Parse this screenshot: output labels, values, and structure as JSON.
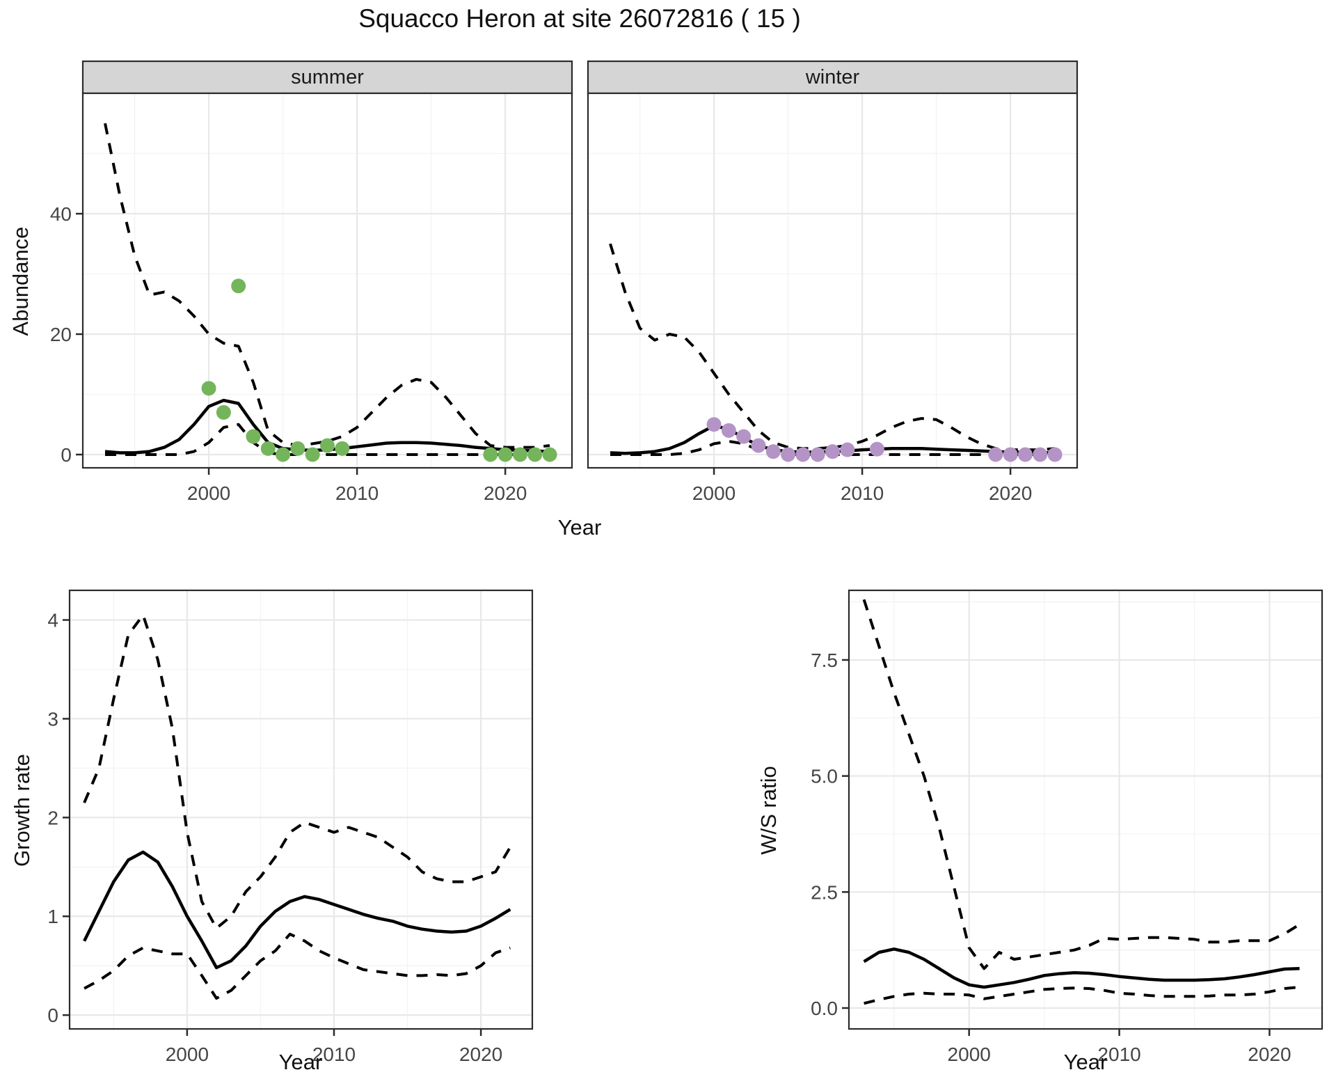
{
  "title": "Squacco Heron at site 26072816 ( 15 )",
  "axis": {
    "abundance_label": "Abundance",
    "year_label": "Year",
    "growth_label": "Growth rate",
    "ws_label": "W/S ratio"
  },
  "colors": {
    "summer_point": "#74b55c",
    "winter_point": "#b494c6",
    "line": "#000000",
    "grid_major": "#e8e8e8",
    "grid_minor": "#f3f3f3",
    "strip_bg": "#d5d5d5",
    "panel_border": "#2b2b2b",
    "tick_text": "#454545"
  },
  "chart_data": [
    {
      "id": "abundance_summer",
      "type": "line",
      "facet_label": "summer",
      "xlabel": "Year",
      "ylabel": "Abundance",
      "xlim": [
        1991.5,
        2024.5
      ],
      "ylim": [
        -2.2,
        60
      ],
      "xticks": {
        "values": [
          2000,
          2010,
          2020
        ],
        "labels": [
          "2000",
          "2010",
          "2020"
        ],
        "minor": [
          1995,
          2005,
          2015
        ]
      },
      "yticks": {
        "values": [
          0,
          20,
          40
        ],
        "labels": [
          "0",
          "20",
          "40"
        ],
        "minor": [
          10,
          30,
          50
        ]
      },
      "show_y_labels": true,
      "series": [
        {
          "name": "upper_95ci",
          "style": "dashed",
          "x": [
            1993,
            1994,
            1995,
            1996,
            1997,
            1998,
            1999,
            2000,
            2001,
            2002,
            2003,
            2004,
            2005,
            2006,
            2007,
            2008,
            2009,
            2010,
            2011,
            2012,
            2013,
            2014,
            2015,
            2016,
            2017,
            2018,
            2019,
            2020,
            2021,
            2022,
            2023
          ],
          "y": [
            55,
            43,
            33,
            26.5,
            27,
            25.5,
            23,
            20,
            18.5,
            18,
            12,
            4,
            2,
            1.5,
            1.8,
            2.2,
            3,
            4.5,
            7,
            9.5,
            11.5,
            12.5,
            12,
            9.5,
            6.5,
            3.5,
            1.5,
            1.2,
            1.2,
            1.2,
            1.5
          ]
        },
        {
          "name": "lower_95ci",
          "style": "dashed",
          "x": [
            1993,
            1994,
            1995,
            1996,
            1997,
            1998,
            1999,
            2000,
            2001,
            2002,
            2003,
            2004,
            2005,
            2006,
            2007,
            2008,
            2009,
            2010,
            2011,
            2012,
            2013,
            2014,
            2015,
            2016,
            2017,
            2018,
            2019,
            2020,
            2021,
            2022,
            2023
          ],
          "y": [
            0,
            0,
            0,
            0,
            0,
            0,
            0.5,
            2,
            4.5,
            5,
            2,
            0.3,
            0,
            0,
            0,
            0,
            0,
            0,
            0,
            0,
            0,
            0,
            0,
            0,
            0,
            0,
            0,
            0,
            0,
            0,
            0
          ]
        },
        {
          "name": "fitted_median",
          "style": "solid",
          "x": [
            1993,
            1994,
            1995,
            1996,
            1997,
            1998,
            1999,
            2000,
            2001,
            2002,
            2003,
            2004,
            2005,
            2006,
            2007,
            2008,
            2009,
            2010,
            2011,
            2012,
            2013,
            2014,
            2015,
            2016,
            2017,
            2018,
            2019,
            2020,
            2021,
            2022,
            2023
          ],
          "y": [
            0.5,
            0.3,
            0.3,
            0.5,
            1.2,
            2.5,
            5,
            8,
            9,
            8.5,
            5,
            2,
            1,
            0.8,
            0.7,
            0.8,
            1,
            1.3,
            1.6,
            1.9,
            2,
            2,
            1.9,
            1.7,
            1.5,
            1.2,
            1,
            0.8,
            0.7,
            0.6,
            0.5
          ]
        },
        {
          "name": "observed_counts",
          "style": "points",
          "color": "#74b55c",
          "x": [
            2000,
            2001,
            2002,
            2003,
            2004,
            2005,
            2006,
            2007,
            2008,
            2009,
            2019,
            2020,
            2021,
            2022,
            2023
          ],
          "y": [
            11,
            7,
            28,
            3,
            1,
            0,
            1,
            0,
            1.5,
            1,
            0,
            0,
            0,
            0,
            0
          ]
        }
      ]
    },
    {
      "id": "abundance_winter",
      "type": "line",
      "facet_label": "winter",
      "xlabel": "Year",
      "ylabel": "Abundance",
      "xlim": [
        1991.5,
        2024.5
      ],
      "ylim": [
        -2.2,
        60
      ],
      "xticks": {
        "values": [
          2000,
          2010,
          2020
        ],
        "labels": [
          "2000",
          "2010",
          "2020"
        ],
        "minor": [
          1995,
          2005,
          2015
        ]
      },
      "yticks": {
        "values": [
          0,
          20,
          40
        ],
        "labels": [
          "0",
          "20",
          "40"
        ],
        "minor": [
          10,
          30,
          50
        ]
      },
      "show_y_labels": false,
      "series": [
        {
          "name": "upper_95ci",
          "style": "dashed",
          "x": [
            1993,
            1994,
            1995,
            1996,
            1997,
            1998,
            1999,
            2000,
            2001,
            2002,
            2003,
            2004,
            2005,
            2006,
            2007,
            2008,
            2009,
            2010,
            2011,
            2012,
            2013,
            2014,
            2015,
            2016,
            2017,
            2018,
            2019,
            2020,
            2021,
            2022,
            2023
          ],
          "y": [
            35,
            27,
            21,
            19,
            20,
            19.5,
            17,
            13.5,
            10,
            7,
            4,
            2,
            1.2,
            1,
            1,
            1.2,
            1.5,
            2.2,
            3.2,
            4.5,
            5.5,
            6,
            5.8,
            4.5,
            3,
            1.8,
            1,
            0.8,
            0.8,
            0.8,
            1
          ]
        },
        {
          "name": "lower_95ci",
          "style": "dashed",
          "x": [
            1993,
            1994,
            1995,
            1996,
            1997,
            1998,
            1999,
            2000,
            2001,
            2002,
            2003,
            2004,
            2005,
            2006,
            2007,
            2008,
            2009,
            2010,
            2011,
            2012,
            2013,
            2014,
            2015,
            2016,
            2017,
            2018,
            2019,
            2020,
            2021,
            2022,
            2023
          ],
          "y": [
            0,
            0,
            0,
            0,
            0,
            0.2,
            0.8,
            1.8,
            2.2,
            1.8,
            0.8,
            0.2,
            0,
            0,
            0,
            0,
            0,
            0,
            0,
            0,
            0,
            0,
            0,
            0,
            0,
            0,
            0,
            0,
            0,
            0,
            0.2
          ]
        },
        {
          "name": "fitted_median",
          "style": "solid",
          "x": [
            1993,
            1994,
            1995,
            1996,
            1997,
            1998,
            1999,
            2000,
            2001,
            2002,
            2003,
            2004,
            2005,
            2006,
            2007,
            2008,
            2009,
            2010,
            2011,
            2012,
            2013,
            2014,
            2015,
            2016,
            2017,
            2018,
            2019,
            2020,
            2021,
            2022,
            2023
          ],
          "y": [
            0.3,
            0.2,
            0.3,
            0.5,
            1,
            2,
            3.5,
            4.8,
            4.2,
            2.8,
            1.5,
            0.8,
            0.5,
            0.4,
            0.4,
            0.5,
            0.6,
            0.8,
            0.9,
            1,
            1,
            1,
            0.9,
            0.8,
            0.7,
            0.6,
            0.5,
            0.4,
            0.4,
            0.3,
            0.3
          ]
        },
        {
          "name": "observed_counts",
          "style": "points",
          "color": "#b494c6",
          "x": [
            2000,
            2001,
            2002,
            2003,
            2004,
            2005,
            2006,
            2007,
            2008,
            2009,
            2011,
            2019,
            2020,
            2021,
            2022,
            2023
          ],
          "y": [
            5,
            4,
            3,
            1.5,
            0.5,
            0,
            0,
            0,
            0.5,
            0.8,
            0.9,
            0,
            0,
            0,
            0,
            0
          ]
        }
      ]
    },
    {
      "id": "growth_rate",
      "type": "line",
      "facet_label": "",
      "xlabel": "Year",
      "ylabel": "Growth rate",
      "xlim": [
        1992,
        2023.5
      ],
      "ylim": [
        -0.14,
        4.3
      ],
      "xticks": {
        "values": [
          2000,
          2010,
          2020
        ],
        "labels": [
          "2000",
          "2010",
          "2020"
        ],
        "minor": [
          1995,
          2005,
          2015
        ]
      },
      "yticks": {
        "values": [
          0,
          1,
          2,
          3,
          4
        ],
        "labels": [
          "0",
          "1",
          "2",
          "3",
          "4"
        ],
        "minor": [
          0.5,
          1.5,
          2.5,
          3.5
        ]
      },
      "show_y_labels": true,
      "series": [
        {
          "name": "upper_95ci",
          "style": "dashed",
          "x": [
            1993,
            1994,
            1995,
            1996,
            1997,
            1998,
            1999,
            2000,
            2001,
            2002,
            2003,
            2004,
            2005,
            2006,
            2007,
            2008,
            2009,
            2010,
            2011,
            2012,
            2013,
            2014,
            2015,
            2016,
            2017,
            2018,
            2019,
            2020,
            2021,
            2022
          ],
          "y": [
            2.15,
            2.5,
            3.2,
            3.85,
            4.05,
            3.6,
            2.9,
            1.85,
            1.15,
            0.88,
            1.0,
            1.25,
            1.4,
            1.6,
            1.85,
            1.95,
            1.9,
            1.85,
            1.9,
            1.85,
            1.8,
            1.7,
            1.6,
            1.45,
            1.38,
            1.35,
            1.35,
            1.4,
            1.45,
            1.7
          ]
        },
        {
          "name": "lower_95ci",
          "style": "dashed",
          "x": [
            1993,
            1994,
            1995,
            1996,
            1997,
            1998,
            1999,
            2000,
            2001,
            2002,
            2003,
            2004,
            2005,
            2006,
            2007,
            2008,
            2009,
            2010,
            2011,
            2012,
            2013,
            2014,
            2015,
            2016,
            2017,
            2018,
            2019,
            2020,
            2021,
            2022
          ],
          "y": [
            0.27,
            0.35,
            0.45,
            0.6,
            0.68,
            0.65,
            0.62,
            0.62,
            0.4,
            0.17,
            0.25,
            0.4,
            0.55,
            0.65,
            0.82,
            0.75,
            0.65,
            0.58,
            0.52,
            0.46,
            0.44,
            0.42,
            0.4,
            0.4,
            0.41,
            0.4,
            0.42,
            0.5,
            0.63,
            0.68
          ]
        },
        {
          "name": "fitted_median",
          "style": "solid",
          "x": [
            1993,
            1994,
            1995,
            1996,
            1997,
            1998,
            1999,
            2000,
            2001,
            2002,
            2003,
            2004,
            2005,
            2006,
            2007,
            2008,
            2009,
            2010,
            2011,
            2012,
            2013,
            2014,
            2015,
            2016,
            2017,
            2018,
            2019,
            2020,
            2021,
            2022
          ],
          "y": [
            0.75,
            1.05,
            1.35,
            1.57,
            1.65,
            1.55,
            1.3,
            1.0,
            0.75,
            0.48,
            0.55,
            0.7,
            0.9,
            1.05,
            1.15,
            1.2,
            1.17,
            1.12,
            1.07,
            1.02,
            0.98,
            0.95,
            0.9,
            0.87,
            0.85,
            0.84,
            0.85,
            0.9,
            0.98,
            1.07
          ]
        }
      ]
    },
    {
      "id": "ws_ratio",
      "type": "line",
      "facet_label": "",
      "xlabel": "Year",
      "ylabel": "W/S ratio",
      "xlim": [
        1992,
        2023.5
      ],
      "ylim": [
        -0.45,
        9.0
      ],
      "xticks": {
        "values": [
          2000,
          2010,
          2020
        ],
        "labels": [
          "2000",
          "2010",
          "2020"
        ],
        "minor": [
          1995,
          2005,
          2015
        ]
      },
      "yticks": {
        "values": [
          0,
          2.5,
          5,
          7.5
        ],
        "labels": [
          "0.0",
          "2.5",
          "5.0",
          "7.5"
        ],
        "minor": [
          1.25,
          3.75,
          6.25,
          8.75
        ]
      },
      "show_y_labels": true,
      "series": [
        {
          "name": "upper_95ci",
          "style": "dashed",
          "x": [
            1993,
            1994,
            1995,
            1996,
            1997,
            1998,
            1999,
            2000,
            2001,
            2002,
            2003,
            2004,
            2005,
            2006,
            2007,
            2008,
            2009,
            2010,
            2011,
            2012,
            2013,
            2014,
            2015,
            2016,
            2017,
            2018,
            2019,
            2020,
            2021,
            2022
          ],
          "y": [
            8.8,
            7.8,
            6.8,
            5.9,
            5.0,
            3.9,
            2.6,
            1.3,
            0.85,
            1.2,
            1.05,
            1.1,
            1.15,
            1.2,
            1.25,
            1.35,
            1.5,
            1.48,
            1.5,
            1.52,
            1.52,
            1.5,
            1.48,
            1.42,
            1.42,
            1.45,
            1.45,
            1.45,
            1.6,
            1.8
          ]
        },
        {
          "name": "lower_95ci",
          "style": "dashed",
          "x": [
            1993,
            1994,
            1995,
            1996,
            1997,
            1998,
            1999,
            2000,
            2001,
            2002,
            2003,
            2004,
            2005,
            2006,
            2007,
            2008,
            2009,
            2010,
            2011,
            2012,
            2013,
            2014,
            2015,
            2016,
            2017,
            2018,
            2019,
            2020,
            2021,
            2022
          ],
          "y": [
            0.1,
            0.18,
            0.25,
            0.3,
            0.32,
            0.3,
            0.3,
            0.28,
            0.2,
            0.25,
            0.3,
            0.35,
            0.4,
            0.42,
            0.43,
            0.42,
            0.38,
            0.32,
            0.3,
            0.27,
            0.25,
            0.25,
            0.25,
            0.26,
            0.28,
            0.28,
            0.3,
            0.35,
            0.42,
            0.45
          ]
        },
        {
          "name": "fitted_median",
          "style": "solid",
          "x": [
            1993,
            1994,
            1995,
            1996,
            1997,
            1998,
            1999,
            2000,
            2001,
            2002,
            2003,
            2004,
            2005,
            2006,
            2007,
            2008,
            2009,
            2010,
            2011,
            2012,
            2013,
            2014,
            2015,
            2016,
            2017,
            2018,
            2019,
            2020,
            2021,
            2022
          ],
          "y": [
            1.0,
            1.2,
            1.27,
            1.2,
            1.05,
            0.85,
            0.65,
            0.5,
            0.45,
            0.5,
            0.55,
            0.62,
            0.7,
            0.74,
            0.76,
            0.75,
            0.72,
            0.68,
            0.65,
            0.62,
            0.6,
            0.6,
            0.6,
            0.61,
            0.63,
            0.67,
            0.72,
            0.78,
            0.84,
            0.85
          ]
        }
      ]
    }
  ]
}
